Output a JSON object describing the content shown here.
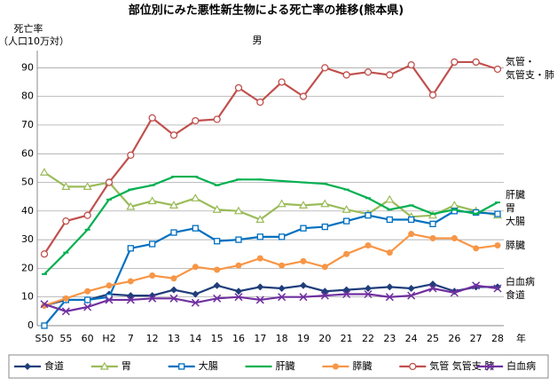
{
  "chart_data": {
    "type": "line",
    "title": "部位別にみた悪性新生物による死亡率の推移(熊本県)",
    "subtitle": "男",
    "y_label": [
      "死亡率",
      "（人口10万対）"
    ],
    "x_label": "年",
    "categories": [
      "S50",
      "55",
      "60",
      "H2",
      "7",
      "12",
      "13",
      "14",
      "15",
      "16",
      "17",
      "18",
      "19",
      "20",
      "21",
      "22",
      "23",
      "24",
      "25",
      "26",
      "27",
      "28"
    ],
    "series": [
      {
        "name": "食道",
        "color": "#1f3e7a",
        "marker": "diamond",
        "values": [
          7,
          9,
          9,
          11,
          10.5,
          10.5,
          12.5,
          11,
          14,
          12,
          13.5,
          13,
          14,
          12,
          12.5,
          13,
          13.5,
          13,
          14.5,
          12,
          13.5,
          13.5
        ]
      },
      {
        "name": "胃",
        "color": "#9bbb59",
        "marker": "triangle",
        "values": [
          53.5,
          48.5,
          48.5,
          50,
          41.5,
          43.5,
          42,
          44.5,
          40.5,
          40,
          37,
          42.5,
          42,
          42.5,
          40.5,
          39,
          44,
          38,
          38.5,
          42,
          40,
          38.5
        ]
      },
      {
        "name": "大腸",
        "color": "#0070c0",
        "marker": "square",
        "values": [
          0,
          9,
          9,
          10,
          27,
          28.5,
          32.5,
          34,
          29.5,
          30,
          31,
          31,
          34,
          34.5,
          36.5,
          38.5,
          37,
          37,
          35.5,
          40,
          39.5,
          39
        ]
      },
      {
        "name": "肝臓",
        "color": "#00b050",
        "marker": "dash",
        "values": [
          18,
          25.5,
          33.5,
          44,
          47.5,
          49,
          52,
          52,
          49,
          51,
          51,
          50.5,
          50,
          49.5,
          47.5,
          44.5,
          40.5,
          42,
          39,
          40.5,
          39,
          43
        ]
      },
      {
        "name": "膵臓",
        "color": "#f79646",
        "marker": "circle",
        "values": [
          7,
          9.5,
          12,
          14,
          15.5,
          17.5,
          16.5,
          20.5,
          19.5,
          21,
          23.5,
          21,
          22.5,
          20.5,
          25,
          28,
          25.5,
          32,
          30.5,
          30.5,
          27,
          28
        ]
      },
      {
        "name": "気管 気管支 肺",
        "color": "#c0504d",
        "marker": "hollow-circle",
        "values": [
          25,
          36.5,
          38.5,
          50,
          59.5,
          72.5,
          66.5,
          71.5,
          72,
          83,
          78,
          85,
          80,
          90,
          87.5,
          88.5,
          87.5,
          91,
          80.5,
          92,
          92,
          89.5
        ]
      },
      {
        "name": "白血病",
        "color": "#7030a0",
        "marker": "x",
        "values": [
          7.5,
          5,
          6.5,
          9,
          9,
          9.5,
          9.5,
          8,
          9.5,
          10,
          9,
          10,
          10,
          10.5,
          11,
          11,
          10,
          10.5,
          13,
          11.5,
          14,
          13
        ]
      }
    ],
    "annotations": [
      "気管・",
      "気管支・肺",
      "肝臓",
      "胃",
      "大腸",
      "膵臓",
      "白血病",
      "食道"
    ],
    "ylim": [
      0,
      96
    ],
    "yticks": [
      0,
      10,
      20,
      30,
      40,
      50,
      60,
      70,
      80,
      90
    ],
    "grid": true
  }
}
